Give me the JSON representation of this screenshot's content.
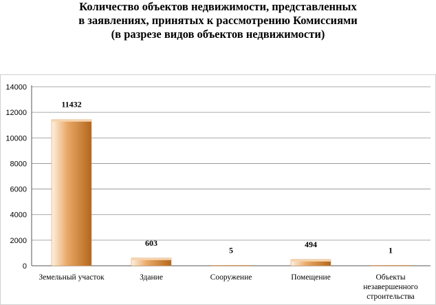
{
  "chart_data": {
    "type": "bar",
    "title_lines": [
      "Количество объектов недвижимости, представленных",
      "в заявлениях, принятых к рассмотрению Комиссиями",
      "(в разрезе видов объектов недвижимости)"
    ],
    "categories": [
      [
        "Земельный участок"
      ],
      [
        "Здание"
      ],
      [
        "Сооружение"
      ],
      [
        "Помещение"
      ],
      [
        "Объекты",
        "незавершенного",
        "строительства"
      ]
    ],
    "values": [
      11432,
      603,
      5,
      494,
      1
    ],
    "ylim": [
      0,
      14000
    ],
    "yticks": [
      0,
      2000,
      4000,
      6000,
      8000,
      10000,
      12000,
      14000
    ],
    "grid": true,
    "legend": "none",
    "colors": {
      "bar_light": "#fdf1e4",
      "bar_mid": "#e8a866",
      "bar_dark": "#b4661c",
      "grid": "#8c8c8c",
      "axis": "#555555"
    }
  }
}
